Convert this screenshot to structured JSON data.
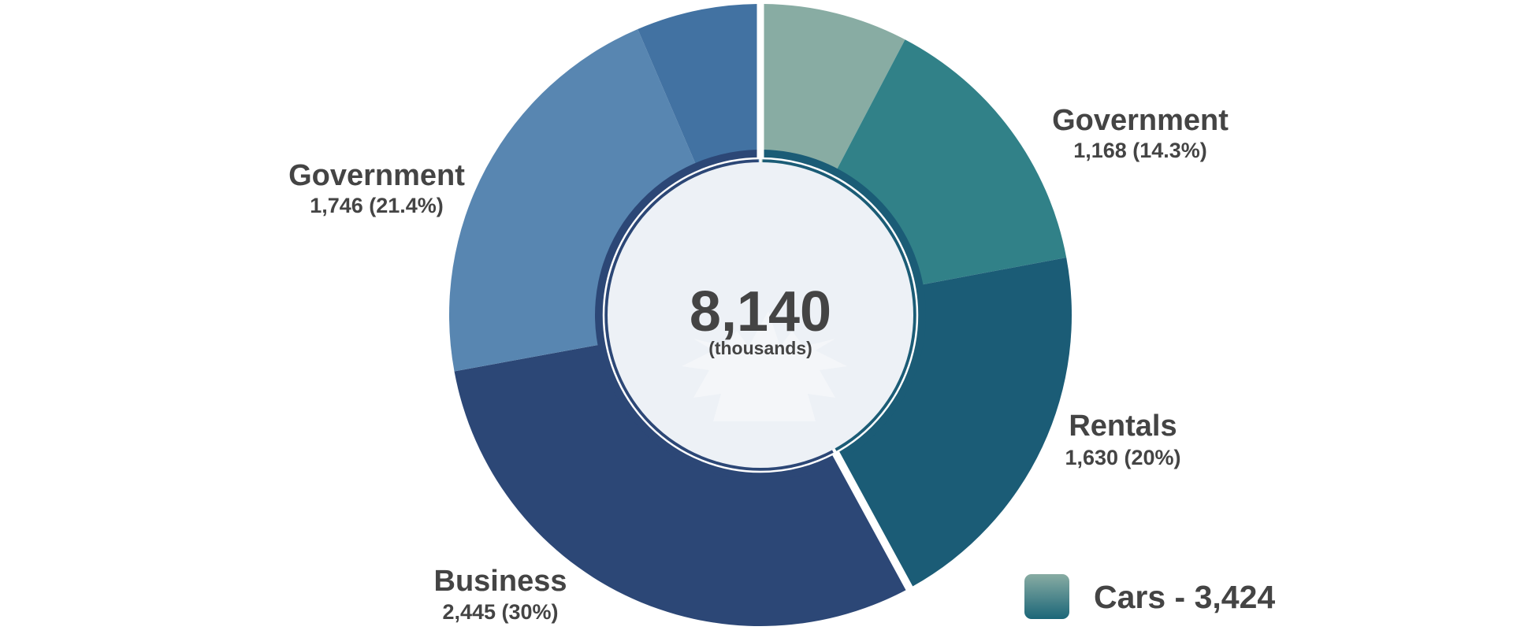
{
  "chart_data": {
    "type": "pie",
    "total": "8,140",
    "total_unit": "(thousands)",
    "total_value": 8140,
    "slices": [
      {
        "group": "cars",
        "name": "",
        "value": 626,
        "value_label": "626 (7.7%)",
        "color": "#88aca3"
      },
      {
        "group": "cars",
        "name": "Government",
        "value": 1168,
        "value_label": "1,168 (14.3%)",
        "color": "#318188"
      },
      {
        "group": "cars",
        "name": "Rentals",
        "value": 1630,
        "value_label": "1,630 (20%)",
        "color": "#1b5c76"
      },
      {
        "group": "trucks",
        "name": "Business",
        "value": 2445,
        "value_label": "2,445 (30%)",
        "color": "#2c4776"
      },
      {
        "group": "trucks",
        "name": "Government",
        "value": 1746,
        "value_label": "1,746 (21.4%)",
        "color": "#5886b1"
      },
      {
        "group": "trucks",
        "name": "",
        "value": 525,
        "value_label": "",
        "color": "#4272a2"
      }
    ],
    "legend": [
      {
        "label": "Cars - 3,424",
        "color_top": "#88aca3",
        "color_bottom": "#1b6678"
      }
    ],
    "inner_ring": {
      "cars_color": "#1b5c76",
      "trucks_color": "#2c4776"
    },
    "center_fill": "#edf1f6"
  }
}
